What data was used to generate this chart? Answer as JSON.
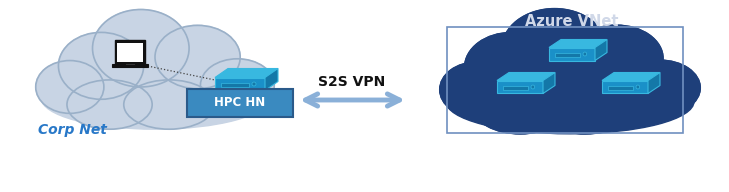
{
  "corp_cloud_color": "#c8d4e4",
  "corp_cloud_edge_color": "#9ab0c8",
  "azure_cloud_color": "#1e3f7a",
  "azure_cloud_edge_color": "#1e3f7a",
  "corp_label": "Corp Net",
  "corp_label_color": "#2878c8",
  "azure_label": "Azure VNet",
  "azure_label_color": "#d0d8e8",
  "vpn_label": "S2S VPN",
  "vpn_label_color": "#111111",
  "hpchn_label": "HPC HN",
  "hpchn_box_color": "#3a8ac0",
  "hpchn_box_edge": "#2a5a8a",
  "hpchn_text_color": "#ffffff",
  "arrow_color": "#8ab0d8",
  "subnet_box_edge": "#7090c0",
  "server_top_color": "#38b8e0",
  "server_front_color": "#1a90c8",
  "server_side_color": "#1478a8",
  "server_edge_color": "#38b8e0",
  "fig_width": 7.29,
  "fig_height": 1.92,
  "dpi": 100
}
